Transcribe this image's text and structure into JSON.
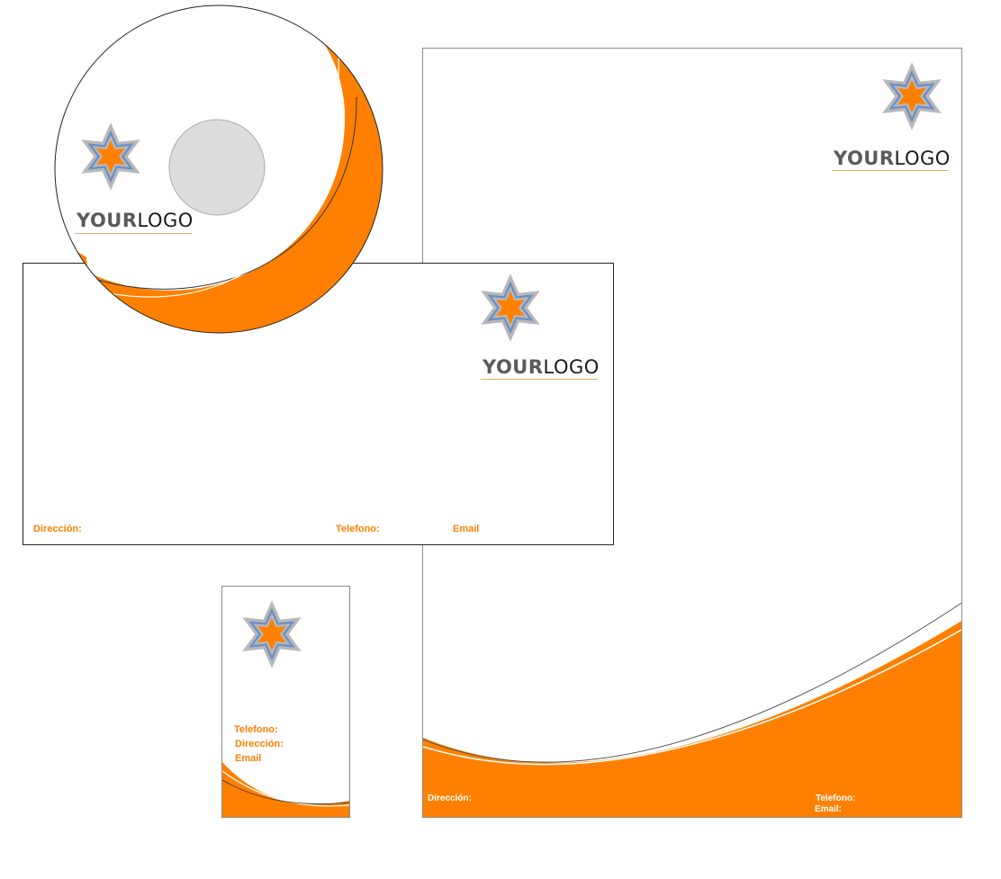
{
  "colors": {
    "accent": "#ff8000",
    "star_outer": "#b8b8b8",
    "star_mid": "#6b8fc7",
    "star_inner": "#ff8000",
    "hole": "#dcdcdc"
  },
  "logo": {
    "word1": "YOUR",
    "word2": "LOGO"
  },
  "icons": {
    "logo_star": "six-pointed-star-icon"
  },
  "letterhead": {
    "address_label": "Dirección:",
    "phone_label": "Telefono:",
    "email_label": "Email:"
  },
  "envelope": {
    "address_label": "Dirección:",
    "phone_label": "Telefono:",
    "email_label": "Email"
  },
  "business_card": {
    "phone_label": "Telefono:",
    "address_label": "Dirección:",
    "email_label": "Email"
  }
}
